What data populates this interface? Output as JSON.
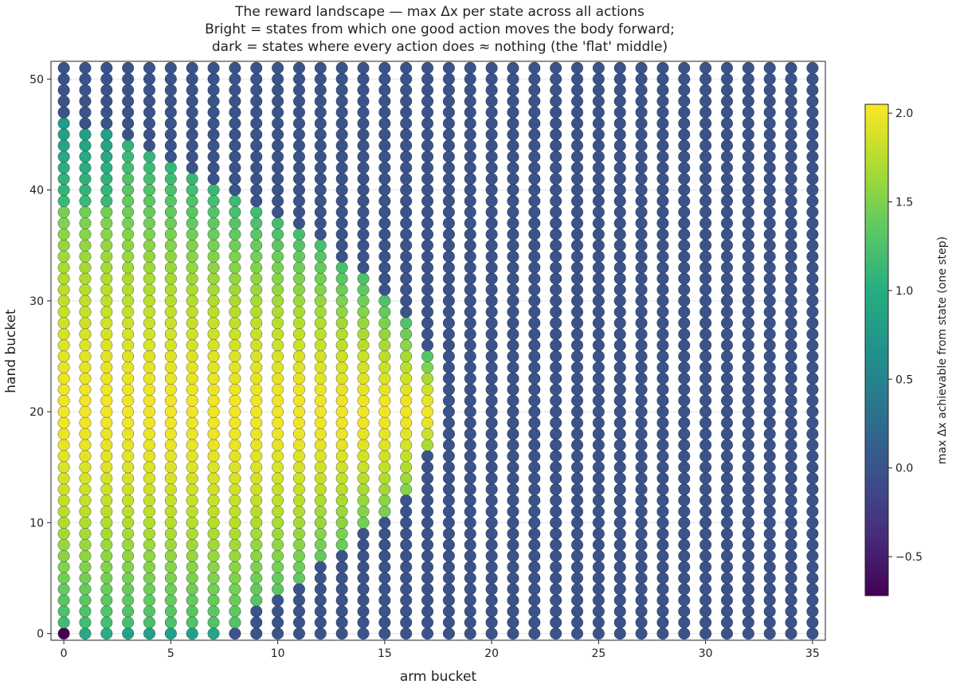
{
  "chart_data": {
    "type": "scatter",
    "title": [
      "The reward landscape — max Δx per state across all actions",
      "Bright = states from which one good action moves the body forward;",
      "dark = states where every action does ≈ nothing (the 'flat' middle)"
    ],
    "xlabel": "arm bucket",
    "ylabel": "hand bucket",
    "x_ticks": [
      0,
      5,
      10,
      15,
      20,
      25,
      30,
      35
    ],
    "y_ticks": [
      0,
      10,
      20,
      30,
      40,
      50
    ],
    "xlim": [
      -0.6,
      35.6
    ],
    "ylim": [
      -0.6,
      51.6
    ],
    "grid": true,
    "colormap": "viridis",
    "colorbar": {
      "label": "max Δx achievable from state (one step)",
      "range": [
        -0.72,
        2.05
      ],
      "ticks": [
        -0.5,
        0.0,
        0.5,
        1.0,
        1.5,
        2.0
      ],
      "tick_labels": [
        "−0.5",
        "0.0",
        "0.5",
        "1.0",
        "1.5",
        "2.0"
      ]
    },
    "grid_dims": {
      "arm_buckets": 36,
      "hand_buckets": 52
    },
    "value_model": {
      "background_value": 0.0,
      "origin_value": -0.72,
      "bright_columns": [
        {
          "x": 0,
          "h0": 0.9,
          "top": 46
        },
        {
          "x": 1,
          "h0": 0.95,
          "top": 45
        },
        {
          "x": 2,
          "h0": 1.0,
          "top": 45
        },
        {
          "x": 3,
          "h0": 0.85,
          "top": 44
        },
        {
          "x": 4,
          "h0": 0.85,
          "top": 43
        },
        {
          "x": 5,
          "h0": 0.85,
          "top": 42
        },
        {
          "x": 6,
          "h0": 0.85,
          "top": 41
        },
        {
          "x": 7,
          "h0": 0.9,
          "top": 40
        },
        {
          "x": 8,
          "h0": 0.0,
          "top": 39
        },
        {
          "x": 9,
          "h0": 0.0,
          "top": 38
        },
        {
          "x": 10,
          "h0": 0.0,
          "top": 37
        },
        {
          "x": 11,
          "h0": 0.0,
          "top": 36
        },
        {
          "x": 12,
          "h0": 0.0,
          "top": 35
        },
        {
          "x": 13,
          "h0": 0.0,
          "top": 33
        },
        {
          "x": 14,
          "h0": 0.0,
          "top": 32
        },
        {
          "x": 15,
          "h0": 0.0,
          "top": 30
        },
        {
          "x": 16,
          "h0": 0.0,
          "top": 28
        },
        {
          "x": 17,
          "h0": 0.0,
          "top": 25
        }
      ],
      "bright_start_rows": {
        "x8": 1,
        "x9": 3,
        "x10": 4,
        "x11": 5,
        "x12": 7,
        "x13": 8,
        "x14": 10,
        "x15": 11,
        "x16": 13,
        "x17": 17
      },
      "peak_value": 2.0,
      "peak_center_row": 20
    }
  }
}
